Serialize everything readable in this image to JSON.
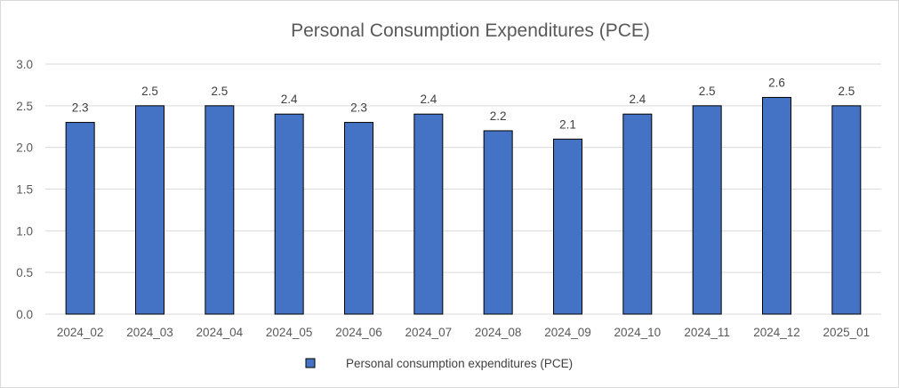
{
  "chart_data": {
    "type": "bar",
    "title": "Personal Consumption Expenditures (PCE)",
    "xlabel": "",
    "ylabel": "",
    "categories": [
      "2024_02",
      "2024_03",
      "2024_04",
      "2024_05",
      "2024_06",
      "2024_07",
      "2024_08",
      "2024_09",
      "2024_10",
      "2024_11",
      "2024_12",
      "2025_01"
    ],
    "series": [
      {
        "name": "Personal consumption expenditures (PCE)",
        "values": [
          2.3,
          2.5,
          2.5,
          2.4,
          2.3,
          2.4,
          2.2,
          2.1,
          2.4,
          2.5,
          2.6,
          2.5
        ],
        "color": "#4472c4"
      }
    ],
    "ylim": [
      0,
      3.0
    ],
    "yticks": [
      "0.0",
      "0.5",
      "1.0",
      "1.5",
      "2.0",
      "2.5",
      "3.0"
    ],
    "data_labels": [
      "2.3",
      "2.5",
      "2.5",
      "2.4",
      "2.3",
      "2.4",
      "2.2",
      "2.1",
      "2.4",
      "2.5",
      "2.6",
      "2.5"
    ],
    "grid": true,
    "legend_position": "bottom"
  }
}
